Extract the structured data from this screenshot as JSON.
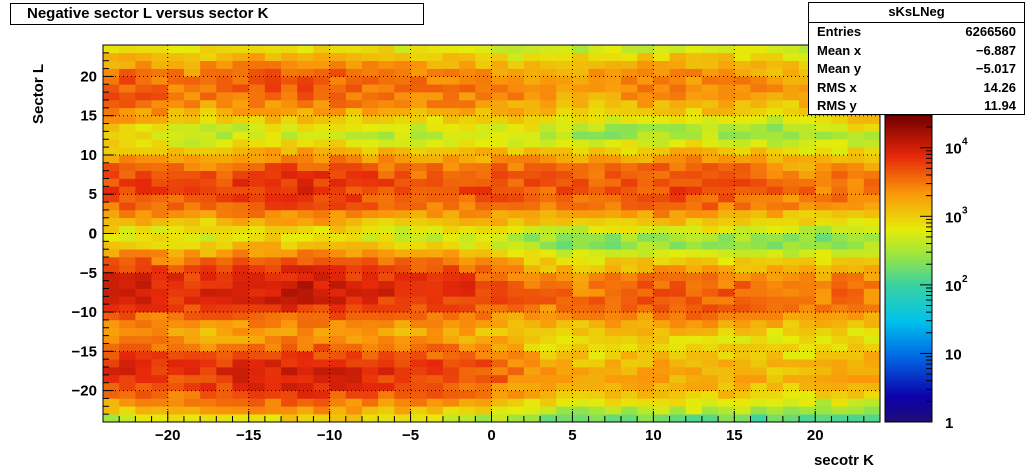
{
  "chart_data": {
    "type": "heatmap",
    "title": "Negative sector L versus sector K",
    "xlabel": "secotr K",
    "ylabel": "Sector L",
    "xlim": [
      -24,
      24
    ],
    "ylim": [
      -24,
      24
    ],
    "x_ticks": [
      "−20",
      "−15",
      "−10",
      "−5",
      "0",
      "5",
      "10",
      "15",
      "20"
    ],
    "x_tick_values": [
      -20,
      -15,
      -10,
      -5,
      0,
      5,
      10,
      15,
      20
    ],
    "y_ticks": [
      "20",
      "15",
      "10",
      "5",
      "0",
      "−5",
      "−10",
      "−15",
      "−20"
    ],
    "y_tick_values": [
      20,
      15,
      10,
      5,
      0,
      -5,
      -10,
      -15,
      -20
    ],
    "z_scale": "log",
    "zlim": [
      1,
      30000
    ],
    "palette_labels": [
      "1",
      "10",
      "10",
      "10",
      "10"
    ],
    "palette_exponents": [
      "",
      "",
      "2",
      "3",
      "4"
    ],
    "palette_values": [
      1,
      10,
      100,
      1000,
      10000
    ],
    "grid": true,
    "stats": {
      "name": "sKsLNeg",
      "rows": [
        {
          "label": "Entries",
          "value": "6266560"
        },
        {
          "label": "Mean x",
          "value": "−6.887"
        },
        {
          "label": "Mean y",
          "value": "−5.017"
        },
        {
          "label": "RMS x",
          "value": "14.26"
        },
        {
          "label": "RMS y",
          "value": "11.94"
        }
      ]
    },
    "clusters": [
      {
        "cx": -12,
        "cy": -18,
        "peak": 10000
      },
      {
        "cx": -12,
        "cy": -7,
        "peak": 12000
      },
      {
        "cx": -12,
        "cy": 6,
        "peak": 8000
      },
      {
        "cx": -12,
        "cy": 19,
        "peak": 5000
      },
      {
        "cx": -23,
        "cy": -17,
        "peak": 6000
      },
      {
        "cx": -23,
        "cy": -7,
        "peak": 8000
      },
      {
        "cx": -23,
        "cy": 6,
        "peak": 5000
      },
      {
        "cx": -23,
        "cy": 18,
        "peak": 4000
      },
      {
        "cx": -2,
        "cy": -17,
        "peak": 3000
      },
      {
        "cx": -2,
        "cy": -7,
        "peak": 3000
      },
      {
        "cx": -2,
        "cy": 6,
        "peak": 2000
      },
      {
        "cx": -2,
        "cy": 18,
        "peak": 1500
      },
      {
        "cx": 2,
        "cy": -18,
        "peak": 800
      },
      {
        "cx": 2,
        "cy": -8,
        "peak": 1000
      },
      {
        "cx": 2,
        "cy": 6,
        "peak": 2500
      },
      {
        "cx": 2,
        "cy": 17,
        "peak": 1000
      },
      {
        "cx": 12,
        "cy": -18,
        "peak": 2000
      },
      {
        "cx": 12,
        "cy": -8,
        "peak": 5000
      },
      {
        "cx": 12,
        "cy": 6,
        "peak": 6000
      },
      {
        "cx": 12,
        "cy": 19,
        "peak": 3000
      },
      {
        "cx": 23,
        "cy": -17,
        "peak": 1500
      },
      {
        "cx": 23,
        "cy": -7,
        "peak": 2500
      },
      {
        "cx": 23,
        "cy": 6,
        "peak": 2000
      },
      {
        "cx": 23,
        "cy": 17,
        "peak": 1500
      }
    ]
  }
}
